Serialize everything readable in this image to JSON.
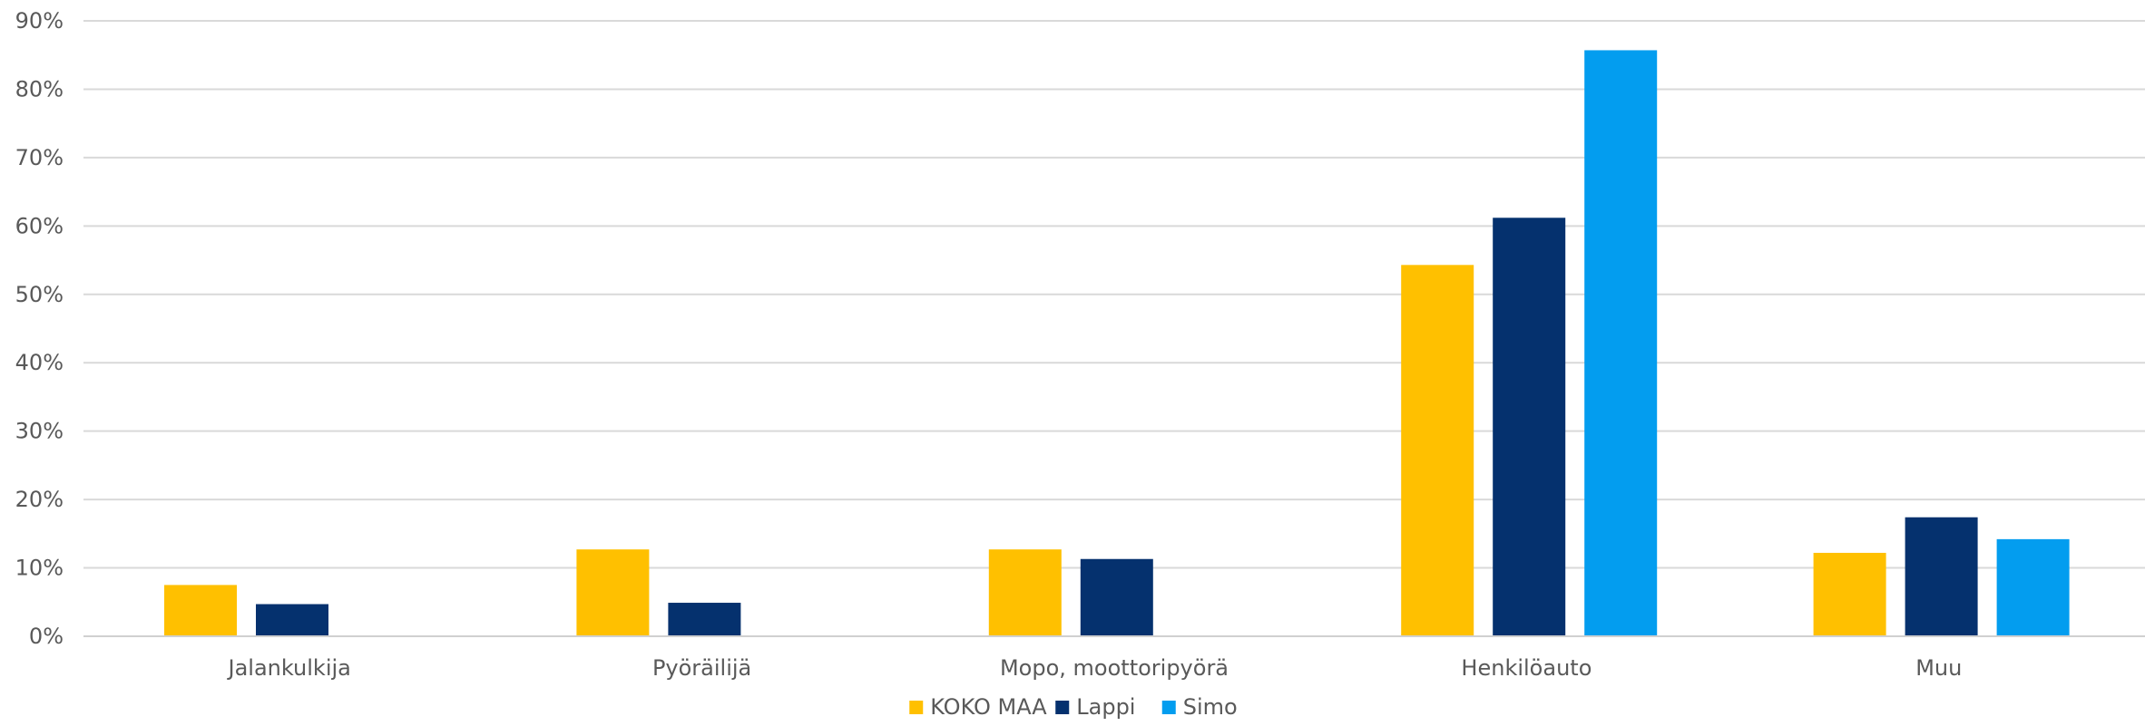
{
  "chart_data": {
    "type": "bar",
    "categories": [
      "Jalankulkija",
      "Pyöräilijä",
      "Mopo, moottoripyörä",
      "Henkilöauto",
      "Muu"
    ],
    "series": [
      {
        "name": "KOKO MAA",
        "color": "#FFC000",
        "values": [
          7.5,
          12.7,
          12.7,
          54.3,
          12.2
        ]
      },
      {
        "name": "Lappi",
        "color": "#05316E",
        "values": [
          4.7,
          4.9,
          11.3,
          61.2,
          17.4
        ]
      },
      {
        "name": "Simo",
        "color": "#039DEF",
        "values": [
          0,
          0,
          0,
          85.7,
          14.2
        ]
      }
    ],
    "y_ticks": [
      "0%",
      "10%",
      "20%",
      "30%",
      "40%",
      "50%",
      "60%",
      "70%",
      "80%",
      "90%"
    ],
    "ylim": [
      0,
      90
    ],
    "grid": true,
    "legend_position": "bottom-center",
    "title": "",
    "xlabel": "",
    "ylabel": ""
  }
}
